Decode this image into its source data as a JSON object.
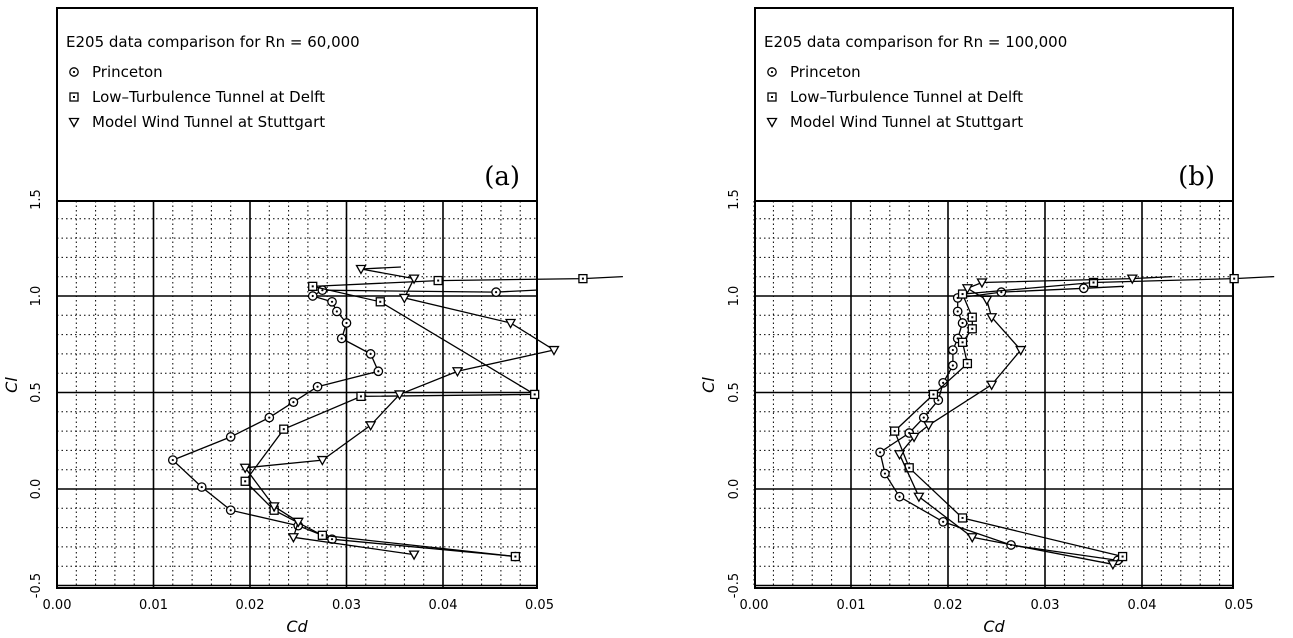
{
  "chart_data": [
    {
      "type": "line",
      "panel_label": "(a)",
      "title": "E205 data comparison for Rn = 60,000",
      "xlabel": "Cd",
      "ylabel": "Cl",
      "xlim": [
        0.0,
        0.05
      ],
      "ylim": [
        -0.5,
        1.5
      ],
      "x_ticks": [
        "0.00",
        "0.01",
        "0.02",
        "0.03",
        "0.04",
        "0.05"
      ],
      "y_ticks": [
        "-0.5",
        "0.0",
        "0.5",
        "1.0",
        "1.5"
      ],
      "grid": true,
      "legend_position": "top",
      "series": [
        {
          "name": "Princeton",
          "marker": "circle",
          "points": [
            [
              0.0455,
              1.02
            ],
            [
              0.0275,
              1.03
            ],
            [
              0.0265,
              1.0
            ],
            [
              0.0285,
              0.97
            ],
            [
              0.029,
              0.92
            ],
            [
              0.03,
              0.86
            ],
            [
              0.0295,
              0.78
            ],
            [
              0.0325,
              0.7
            ],
            [
              0.0333,
              0.61
            ],
            [
              0.027,
              0.53
            ],
            [
              0.0245,
              0.45
            ],
            [
              0.022,
              0.37
            ],
            [
              0.018,
              0.27
            ],
            [
              0.012,
              0.15
            ],
            [
              0.015,
              0.01
            ],
            [
              0.018,
              -0.11
            ],
            [
              0.025,
              -0.19
            ],
            [
              0.0285,
              -0.26
            ],
            [
              0.0475,
              -0.35
            ]
          ]
        },
        {
          "name": "Low–Turbulence Tunnel at Delft",
          "marker": "square",
          "points": [
            [
              0.0545,
              1.09
            ],
            [
              0.0395,
              1.08
            ],
            [
              0.0265,
              1.05
            ],
            [
              0.0335,
              0.97
            ],
            [
              0.0495,
              0.49
            ],
            [
              0.0315,
              0.48
            ],
            [
              0.0235,
              0.31
            ],
            [
              0.0195,
              0.04
            ],
            [
              0.0225,
              -0.11
            ],
            [
              0.0275,
              -0.24
            ],
            [
              0.0475,
              -0.35
            ]
          ]
        },
        {
          "name": "Model Wind Tunnel at Stuttgart",
          "marker": "triangle",
          "points": [
            [
              0.0315,
              1.14
            ],
            [
              0.037,
              1.09
            ],
            [
              0.036,
              0.99
            ],
            [
              0.047,
              0.86
            ],
            [
              0.0515,
              0.72
            ],
            [
              0.0415,
              0.61
            ],
            [
              0.0355,
              0.49
            ],
            [
              0.0325,
              0.33
            ],
            [
              0.0275,
              0.15
            ],
            [
              0.0195,
              0.11
            ],
            [
              0.0225,
              -0.09
            ],
            [
              0.025,
              -0.17
            ],
            [
              0.0245,
              -0.25
            ],
            [
              0.037,
              -0.34
            ]
          ]
        }
      ]
    },
    {
      "type": "line",
      "panel_label": "(b)",
      "title": "E205 data comparison for Rn = 100,000",
      "xlabel": "Cd",
      "ylabel": "Cl",
      "xlim": [
        0.0,
        0.05
      ],
      "ylim": [
        -0.5,
        1.5
      ],
      "x_ticks": [
        "0.00",
        "0.01",
        "0.02",
        "0.03",
        "0.04",
        "0.05"
      ],
      "y_ticks": [
        "-0.5",
        "0.0",
        "0.5",
        "1.0",
        "1.5"
      ],
      "grid": true,
      "legend_position": "top",
      "series": [
        {
          "name": "Princeton",
          "marker": "circle",
          "points": [
            [
              0.034,
              1.04
            ],
            [
              0.0255,
              1.02
            ],
            [
              0.021,
              0.99
            ],
            [
              0.021,
              0.92
            ],
            [
              0.0215,
              0.86
            ],
            [
              0.021,
              0.78
            ],
            [
              0.0205,
              0.72
            ],
            [
              0.0205,
              0.64
            ],
            [
              0.0195,
              0.55
            ],
            [
              0.019,
              0.46
            ],
            [
              0.0175,
              0.37
            ],
            [
              0.016,
              0.29
            ],
            [
              0.013,
              0.19
            ],
            [
              0.0135,
              0.08
            ],
            [
              0.015,
              -0.04
            ],
            [
              0.0195,
              -0.17
            ],
            [
              0.0265,
              -0.29
            ],
            [
              0.0375,
              -0.37
            ]
          ]
        },
        {
          "name": "Low–Turbulence Tunnel at Delft",
          "marker": "square",
          "points": [
            [
              0.0495,
              1.09
            ],
            [
              0.035,
              1.07
            ],
            [
              0.0215,
              1.01
            ],
            [
              0.0225,
              0.89
            ],
            [
              0.0225,
              0.83
            ],
            [
              0.0215,
              0.76
            ],
            [
              0.022,
              0.65
            ],
            [
              0.0185,
              0.49
            ],
            [
              0.0145,
              0.3
            ],
            [
              0.016,
              0.11
            ],
            [
              0.0215,
              -0.15
            ],
            [
              0.038,
              -0.35
            ]
          ]
        },
        {
          "name": "Model Wind Tunnel at Stuttgart",
          "marker": "triangle",
          "points": [
            [
              0.039,
              1.09
            ],
            [
              0.0235,
              1.07
            ],
            [
              0.022,
              1.04
            ],
            [
              0.024,
              0.98
            ],
            [
              0.0245,
              0.89
            ],
            [
              0.0275,
              0.72
            ],
            [
              0.0245,
              0.54
            ],
            [
              0.018,
              0.33
            ],
            [
              0.0165,
              0.27
            ],
            [
              0.015,
              0.18
            ],
            [
              0.017,
              -0.04
            ],
            [
              0.0225,
              -0.25
            ],
            [
              0.037,
              -0.39
            ]
          ]
        }
      ]
    }
  ]
}
